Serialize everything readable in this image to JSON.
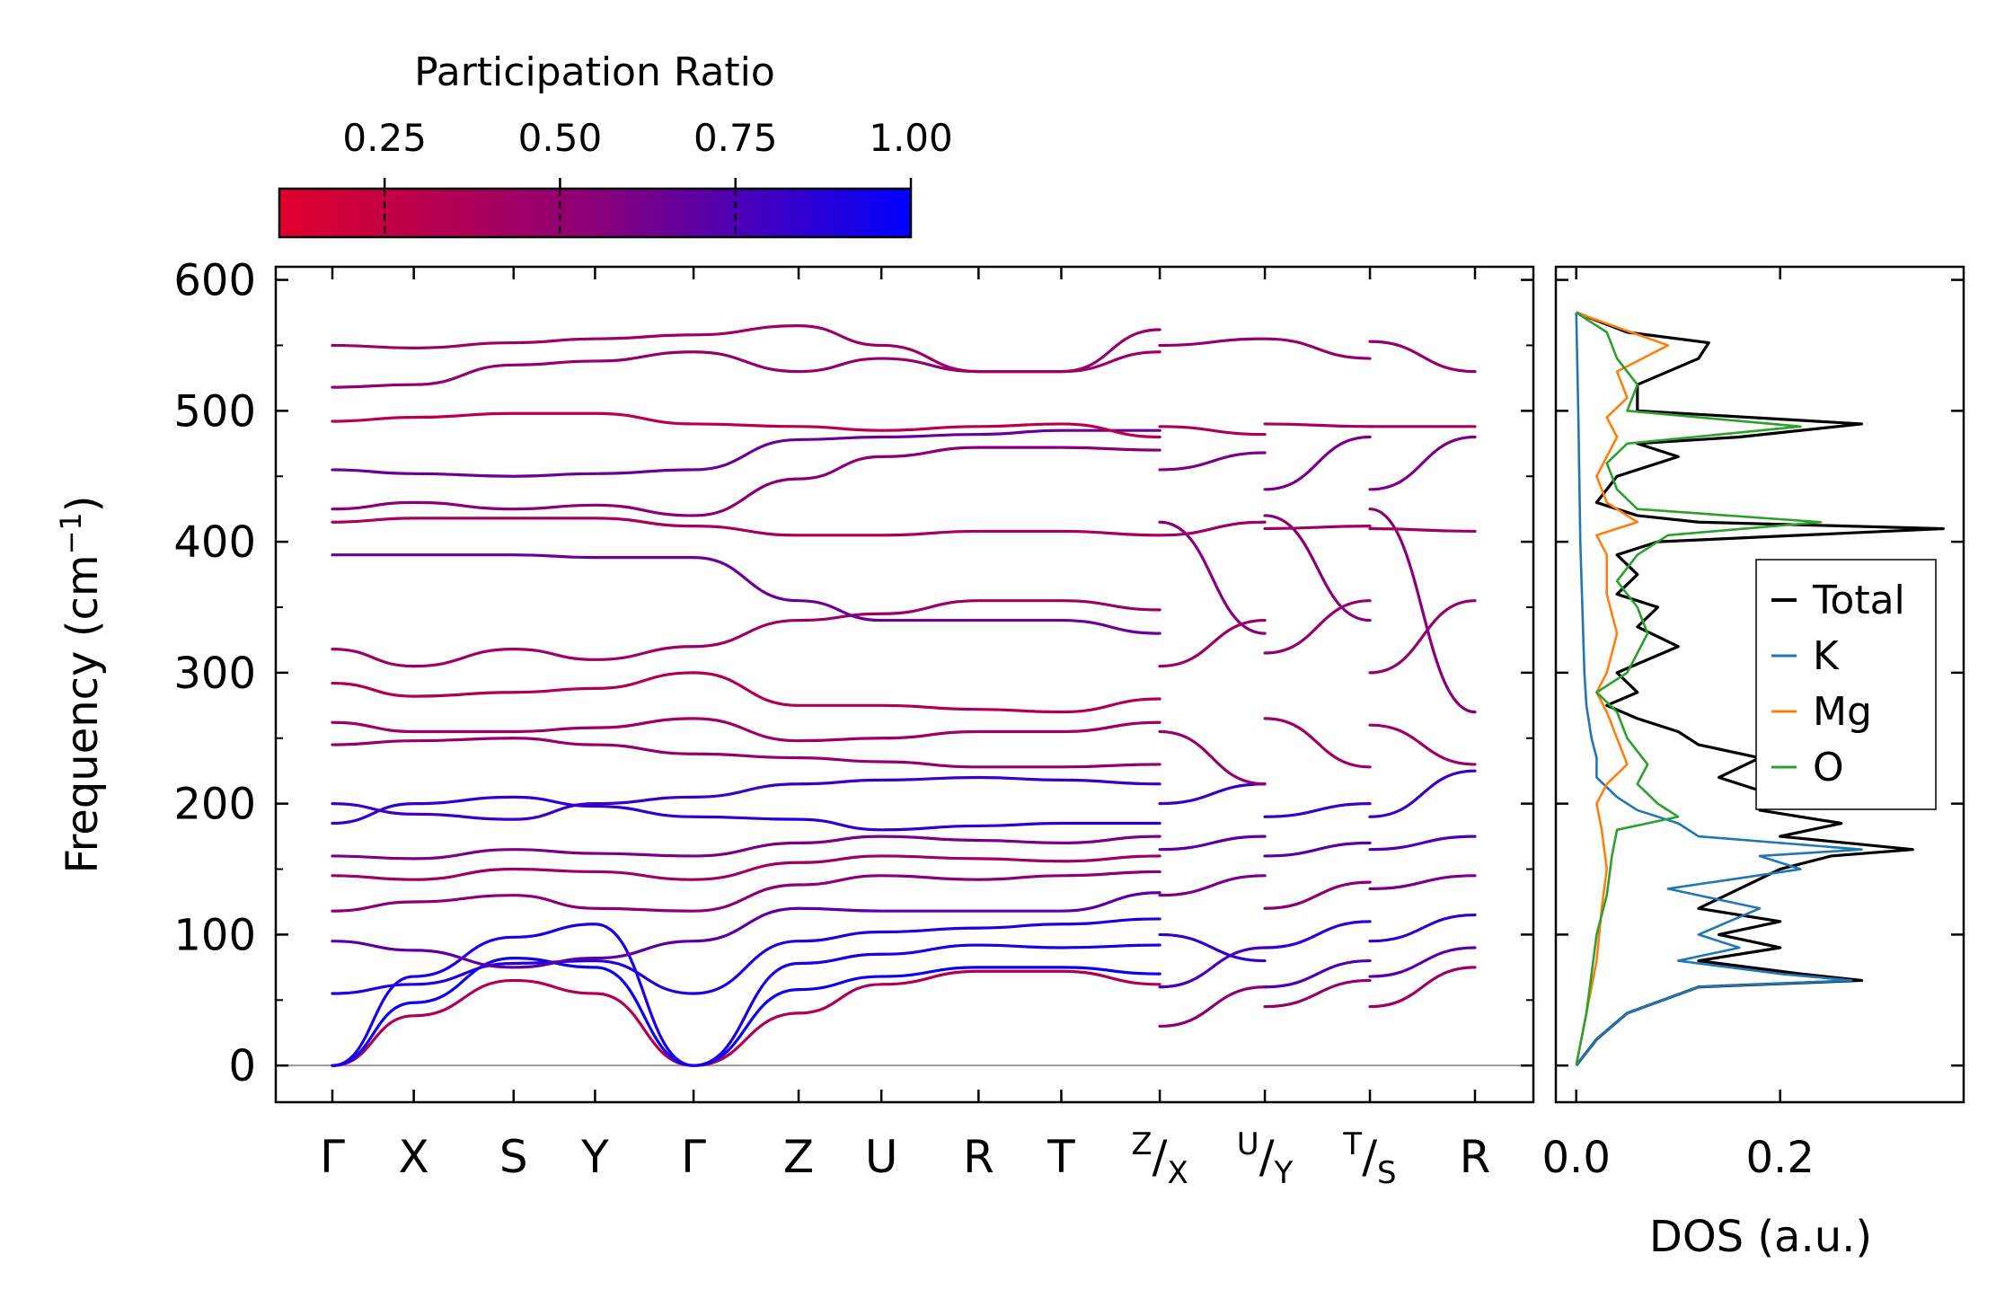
{
  "chart_data": [
    {
      "type": "line",
      "name": "phonon-band-structure",
      "ylabel": "Frequency (cm$^{-1}$)",
      "ylabel_parts": {
        "main": "Frequency (cm",
        "sup": "−1",
        "close": ")"
      },
      "ylim": [
        -28,
        610
      ],
      "yticks": [
        0,
        100,
        200,
        300,
        400,
        500,
        600
      ],
      "path_segments": [
        {
          "labels": [
            "Γ",
            "X",
            "S",
            "Y",
            "Γ",
            "Z",
            "U",
            "R",
            "T",
            "Z"
          ],
          "x": [
            0,
            0.62,
            1.38,
            2.0,
            2.75,
            3.55,
            4.18,
            4.92,
            5.55,
            6.3
          ]
        },
        {
          "labels": [
            "X",
            "U"
          ],
          "x": [
            6.3,
            7.1
          ]
        },
        {
          "labels": [
            "Y",
            "T"
          ],
          "x": [
            7.1,
            7.9
          ]
        },
        {
          "labels": [
            "S",
            "R"
          ],
          "x": [
            7.9,
            8.7
          ]
        }
      ],
      "xtick_labels": [
        {
          "x": 0,
          "text": "Γ"
        },
        {
          "x": 0.62,
          "text": "X"
        },
        {
          "x": 1.38,
          "text": "S"
        },
        {
          "x": 2.0,
          "text": "Y"
        },
        {
          "x": 2.75,
          "text": "Γ"
        },
        {
          "x": 3.55,
          "text": "Z"
        },
        {
          "x": 4.18,
          "text": "U"
        },
        {
          "x": 4.92,
          "text": "R"
        },
        {
          "x": 5.55,
          "text": "T"
        },
        {
          "x": 6.3,
          "top": "Z",
          "bottom": "X"
        },
        {
          "x": 7.1,
          "top": "U",
          "bottom": "Y"
        },
        {
          "x": 7.9,
          "top": "T",
          "bottom": "S"
        },
        {
          "x": 8.7,
          "text": "R"
        }
      ],
      "branches": [
        {
          "segment": 0,
          "pr": 0.35,
          "y": [
            0,
            38,
            65,
            55,
            0,
            40,
            62,
            72,
            72,
            62
          ]
        },
        {
          "segment": 0,
          "pr": 0.95,
          "y": [
            0,
            48,
            82,
            75,
            0,
            58,
            68,
            75,
            75,
            70
          ]
        },
        {
          "segment": 0,
          "pr": 0.92,
          "y": [
            0,
            68,
            98,
            108,
            0,
            78,
            85,
            92,
            90,
            92
          ]
        },
        {
          "segment": 0,
          "pr": 0.9,
          "y": [
            55,
            62,
            78,
            80,
            55,
            95,
            102,
            105,
            108,
            112
          ]
        },
        {
          "segment": 0,
          "pr": 0.7,
          "y": [
            95,
            88,
            75,
            82,
            95,
            120,
            118,
            118,
            118,
            132
          ]
        },
        {
          "segment": 0,
          "pr": 0.55,
          "y": [
            118,
            125,
            130,
            120,
            118,
            138,
            145,
            142,
            145,
            148
          ]
        },
        {
          "segment": 0,
          "pr": 0.45,
          "y": [
            145,
            142,
            150,
            148,
            142,
            155,
            160,
            158,
            156,
            160
          ]
        },
        {
          "segment": 0,
          "pr": 0.6,
          "y": [
            160,
            158,
            165,
            162,
            160,
            170,
            175,
            172,
            170,
            175
          ]
        },
        {
          "segment": 0,
          "pr": 0.85,
          "y": [
            185,
            200,
            205,
            198,
            190,
            188,
            180,
            183,
            185,
            185
          ]
        },
        {
          "segment": 0,
          "pr": 0.8,
          "y": [
            200,
            192,
            188,
            200,
            205,
            215,
            218,
            220,
            218,
            215
          ]
        },
        {
          "segment": 0,
          "pr": 0.5,
          "y": [
            245,
            248,
            250,
            245,
            238,
            235,
            232,
            228,
            228,
            230
          ]
        },
        {
          "segment": 0,
          "pr": 0.45,
          "y": [
            262,
            255,
            255,
            258,
            265,
            248,
            250,
            255,
            255,
            262
          ]
        },
        {
          "segment": 0,
          "pr": 0.35,
          "y": [
            292,
            282,
            285,
            288,
            300,
            275,
            275,
            272,
            270,
            280
          ]
        },
        {
          "segment": 0,
          "pr": 0.45,
          "y": [
            318,
            305,
            318,
            310,
            320,
            340,
            345,
            355,
            355,
            348
          ]
        },
        {
          "segment": 0,
          "pr": 0.65,
          "y": [
            390,
            390,
            390,
            388,
            388,
            355,
            340,
            340,
            340,
            330
          ]
        },
        {
          "segment": 0,
          "pr": 0.4,
          "y": [
            415,
            418,
            418,
            418,
            412,
            405,
            405,
            408,
            408,
            405
          ]
        },
        {
          "segment": 0,
          "pr": 0.55,
          "y": [
            425,
            430,
            425,
            428,
            420,
            448,
            465,
            472,
            472,
            470
          ]
        },
        {
          "segment": 0,
          "pr": 0.65,
          "y": [
            455,
            452,
            450,
            452,
            455,
            478,
            480,
            482,
            485,
            485
          ]
        },
        {
          "segment": 0,
          "pr": 0.3,
          "y": [
            492,
            495,
            498,
            498,
            490,
            488,
            485,
            488,
            490,
            480
          ]
        },
        {
          "segment": 0,
          "pr": 0.5,
          "y": [
            518,
            520,
            535,
            538,
            545,
            530,
            540,
            530,
            530,
            562
          ]
        },
        {
          "segment": 0,
          "pr": 0.45,
          "y": [
            550,
            548,
            552,
            555,
            558,
            565,
            550,
            530,
            530,
            545
          ]
        },
        {
          "segment": 1,
          "pr": 0.55,
          "y": [
            30,
            60
          ]
        },
        {
          "segment": 1,
          "pr": 0.75,
          "y": [
            60,
            90
          ]
        },
        {
          "segment": 1,
          "pr": 0.85,
          "y": [
            100,
            80
          ]
        },
        {
          "segment": 1,
          "pr": 0.6,
          "y": [
            130,
            145
          ]
        },
        {
          "segment": 1,
          "pr": 0.7,
          "y": [
            165,
            175
          ]
        },
        {
          "segment": 1,
          "pr": 0.8,
          "y": [
            200,
            215
          ]
        },
        {
          "segment": 1,
          "pr": 0.5,
          "y": [
            255,
            215
          ]
        },
        {
          "segment": 1,
          "pr": 0.45,
          "y": [
            305,
            340
          ]
        },
        {
          "segment": 1,
          "pr": 0.55,
          "y": [
            415,
            330
          ]
        },
        {
          "segment": 1,
          "pr": 0.45,
          "y": [
            405,
            415
          ]
        },
        {
          "segment": 1,
          "pr": 0.6,
          "y": [
            455,
            468
          ]
        },
        {
          "segment": 1,
          "pr": 0.4,
          "y": [
            488,
            482
          ]
        },
        {
          "segment": 1,
          "pr": 0.5,
          "y": [
            550,
            555
          ]
        },
        {
          "segment": 2,
          "pr": 0.5,
          "y": [
            45,
            65
          ]
        },
        {
          "segment": 2,
          "pr": 0.75,
          "y": [
            60,
            80
          ]
        },
        {
          "segment": 2,
          "pr": 0.85,
          "y": [
            90,
            110
          ]
        },
        {
          "segment": 2,
          "pr": 0.55,
          "y": [
            120,
            140
          ]
        },
        {
          "segment": 2,
          "pr": 0.7,
          "y": [
            160,
            170
          ]
        },
        {
          "segment": 2,
          "pr": 0.8,
          "y": [
            190,
            200
          ]
        },
        {
          "segment": 2,
          "pr": 0.45,
          "y": [
            265,
            228
          ]
        },
        {
          "segment": 2,
          "pr": 0.5,
          "y": [
            315,
            355
          ]
        },
        {
          "segment": 2,
          "pr": 0.55,
          "y": [
            420,
            340
          ]
        },
        {
          "segment": 2,
          "pr": 0.45,
          "y": [
            410,
            412
          ]
        },
        {
          "segment": 2,
          "pr": 0.6,
          "y": [
            440,
            480
          ]
        },
        {
          "segment": 2,
          "pr": 0.4,
          "y": [
            490,
            488
          ]
        },
        {
          "segment": 2,
          "pr": 0.5,
          "y": [
            555,
            540
          ]
        },
        {
          "segment": 3,
          "pr": 0.45,
          "y": [
            45,
            75
          ]
        },
        {
          "segment": 3,
          "pr": 0.7,
          "y": [
            68,
            90
          ]
        },
        {
          "segment": 3,
          "pr": 0.85,
          "y": [
            95,
            115
          ]
        },
        {
          "segment": 3,
          "pr": 0.6,
          "y": [
            135,
            145
          ]
        },
        {
          "segment": 3,
          "pr": 0.75,
          "y": [
            165,
            175
          ]
        },
        {
          "segment": 3,
          "pr": 0.8,
          "y": [
            190,
            225
          ]
        },
        {
          "segment": 3,
          "pr": 0.45,
          "y": [
            260,
            230
          ]
        },
        {
          "segment": 3,
          "pr": 0.5,
          "y": [
            300,
            355
          ]
        },
        {
          "segment": 3,
          "pr": 0.55,
          "y": [
            425,
            270
          ]
        },
        {
          "segment": 3,
          "pr": 0.45,
          "y": [
            410,
            408
          ]
        },
        {
          "segment": 3,
          "pr": 0.6,
          "y": [
            440,
            480
          ]
        },
        {
          "segment": 3,
          "pr": 0.4,
          "y": [
            488,
            488
          ]
        },
        {
          "segment": 3,
          "pr": 0.5,
          "y": [
            553,
            530
          ]
        }
      ]
    },
    {
      "type": "colorbar",
      "name": "participation-ratio",
      "title": "Participation Ratio",
      "range": [
        0.1,
        1.0
      ],
      "ticks": [
        0.25,
        0.5,
        0.75,
        1.0
      ],
      "tick_labels": [
        "0.25",
        "0.50",
        "0.75",
        "1.00"
      ],
      "colors": [
        "#e0002a",
        "#8a0078",
        "#0000ff"
      ]
    },
    {
      "type": "line",
      "name": "dos",
      "xlabel": "DOS (a.u.)",
      "xlim": [
        -0.02,
        0.38
      ],
      "xticks": [
        0.0,
        0.2
      ],
      "xtick_labels": [
        "0.0",
        "0.2"
      ],
      "ylim": [
        -28,
        610
      ],
      "legend": {
        "position": "center-right",
        "entries": [
          "Total",
          "K",
          "Mg",
          "O"
        ]
      },
      "series": [
        {
          "name": "Total",
          "color": "#000000",
          "y": [
            0,
            20,
            40,
            60,
            65,
            70,
            80,
            90,
            100,
            110,
            120,
            135,
            150,
            160,
            165,
            175,
            185,
            195,
            205,
            220,
            235,
            245,
            255,
            265,
            275,
            285,
            300,
            320,
            335,
            350,
            360,
            375,
            390,
            400,
            410,
            415,
            420,
            430,
            450,
            465,
            475,
            480,
            490,
            500,
            520,
            540,
            552,
            560,
            575
          ],
          "x": [
            0.0,
            0.02,
            0.05,
            0.12,
            0.28,
            0.22,
            0.12,
            0.2,
            0.14,
            0.2,
            0.12,
            0.16,
            0.2,
            0.25,
            0.33,
            0.2,
            0.26,
            0.18,
            0.2,
            0.14,
            0.18,
            0.12,
            0.1,
            0.06,
            0.03,
            0.06,
            0.04,
            0.1,
            0.06,
            0.08,
            0.04,
            0.06,
            0.04,
            0.08,
            0.36,
            0.12,
            0.06,
            0.02,
            0.04,
            0.1,
            0.06,
            0.16,
            0.28,
            0.06,
            0.06,
            0.12,
            0.13,
            0.05,
            0.0
          ]
        },
        {
          "name": "K",
          "color": "#1f77b4",
          "y": [
            0,
            20,
            40,
            60,
            65,
            70,
            80,
            90,
            100,
            110,
            120,
            135,
            150,
            160,
            165,
            175,
            185,
            195,
            205,
            220,
            235,
            250,
            275,
            300,
            350,
            400,
            450,
            500,
            575
          ],
          "x": [
            0.0,
            0.02,
            0.05,
            0.12,
            0.27,
            0.2,
            0.1,
            0.16,
            0.12,
            0.15,
            0.18,
            0.09,
            0.22,
            0.18,
            0.28,
            0.12,
            0.1,
            0.06,
            0.04,
            0.02,
            0.02,
            0.015,
            0.01,
            0.008,
            0.006,
            0.004,
            0.003,
            0.002,
            0.0
          ]
        },
        {
          "name": "Mg",
          "color": "#ff7f0e",
          "y": [
            0,
            40,
            80,
            120,
            150,
            180,
            200,
            215,
            230,
            250,
            270,
            285,
            300,
            330,
            360,
            390,
            405,
            415,
            430,
            450,
            480,
            495,
            510,
            530,
            550,
            575
          ],
          "x": [
            0.0,
            0.01,
            0.02,
            0.025,
            0.03,
            0.025,
            0.02,
            0.03,
            0.05,
            0.04,
            0.03,
            0.02,
            0.03,
            0.04,
            0.03,
            0.03,
            0.02,
            0.06,
            0.03,
            0.02,
            0.04,
            0.03,
            0.05,
            0.04,
            0.09,
            0.0
          ]
        },
        {
          "name": "O",
          "color": "#2ca02c",
          "y": [
            0,
            40,
            70,
            100,
            130,
            160,
            180,
            190,
            200,
            215,
            230,
            250,
            270,
            285,
            300,
            330,
            350,
            370,
            390,
            405,
            415,
            425,
            440,
            460,
            475,
            488,
            500,
            520,
            540,
            560,
            575
          ],
          "x": [
            0.0,
            0.01,
            0.015,
            0.02,
            0.03,
            0.035,
            0.04,
            0.1,
            0.08,
            0.06,
            0.07,
            0.05,
            0.04,
            0.02,
            0.05,
            0.07,
            0.06,
            0.04,
            0.06,
            0.09,
            0.24,
            0.06,
            0.04,
            0.03,
            0.05,
            0.22,
            0.05,
            0.06,
            0.04,
            0.03,
            0.0
          ]
        }
      ]
    }
  ]
}
